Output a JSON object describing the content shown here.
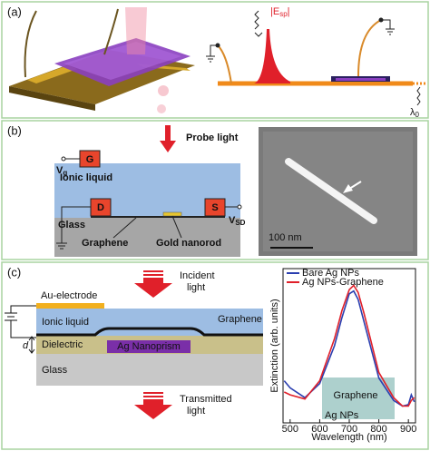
{
  "panel_a": {
    "label": "(a)",
    "field": "|E",
    "field_sub": "sp",
    "field_end": "|",
    "wavelength": "λ",
    "wavelength_sub": "0"
  },
  "panel_b": {
    "label": "(b)",
    "probe": "Probe light",
    "gate": "G",
    "vg": "V",
    "vg_sub": "g",
    "ionic": "Ionic liquid",
    "drain": "D",
    "source": "S",
    "vsd": "V",
    "vsd_sub": "SD",
    "glass": "Glass",
    "graphene": "Graphene",
    "nanorod": "Gold nanorod",
    "scale": "100 nm"
  },
  "panel_c": {
    "label": "(c)",
    "incident": [
      "Incident",
      "light"
    ],
    "electrode": "Au-electrode",
    "ionic": "Ionic liquid",
    "graphene": "Graphene",
    "d": "d",
    "dielectric": "Dielectric",
    "prism": "Ag Nanoprism",
    "glass": "Glass",
    "transmitted": [
      "Transmitted",
      "light"
    ],
    "inset_graphene": "Graphene",
    "inset_ag": "Ag NPs"
  },
  "chart_data": {
    "type": "line",
    "xlabel": "Wavelength (nm)",
    "ylabel": "Extinction (arb. units)",
    "x": [
      480,
      500,
      550,
      600,
      650,
      675,
      700,
      715,
      730,
      750,
      800,
      850,
      880,
      900,
      910,
      920
    ],
    "xlim": [
      476,
      924
    ],
    "xticks": [
      500,
      600,
      700,
      800,
      900
    ],
    "ylim": [
      0,
      1.1
    ],
    "series": [
      {
        "name": "Bare Ag NPs",
        "color": "#2b3fb0",
        "values": [
          0.3,
          0.25,
          0.18,
          0.28,
          0.55,
          0.75,
          0.92,
          0.94,
          0.88,
          0.72,
          0.32,
          0.16,
          0.12,
          0.13,
          0.2,
          0.15
        ]
      },
      {
        "name": "Ag NPs-Graphene",
        "color": "#e0202a",
        "values": [
          0.22,
          0.2,
          0.17,
          0.3,
          0.6,
          0.8,
          0.95,
          0.98,
          0.93,
          0.78,
          0.36,
          0.18,
          0.12,
          0.12,
          0.16,
          0.18
        ]
      }
    ]
  }
}
